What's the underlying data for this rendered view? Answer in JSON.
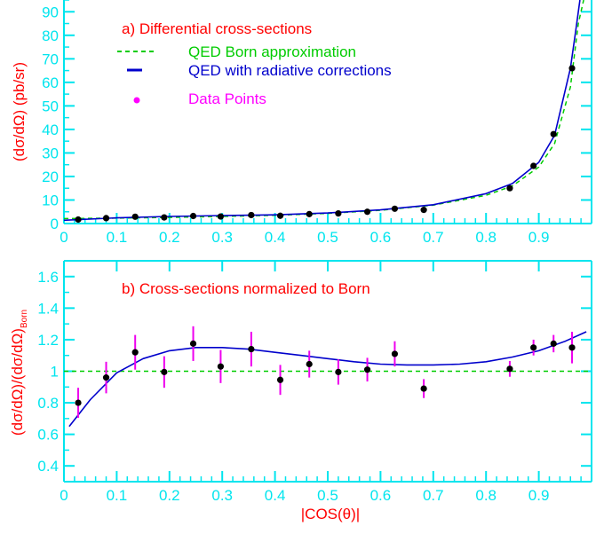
{
  "colors": {
    "axis": "#00e5ee",
    "title": "#ff0000",
    "born": "#00cc00",
    "radiative": "#0000cc",
    "data_point": "#000000",
    "error_bar": "#ee00ee",
    "data_legend": "#ff00ff"
  },
  "chart_data": [
    {
      "type": "scatter",
      "title": "a) Differential cross-sections",
      "xlabel": "",
      "ylabel": "(dσ/dΩ) (pb/sr)",
      "xlim": [
        0,
        1
      ],
      "ylim": [
        0,
        95
      ],
      "x_ticks": [
        "0",
        "0.1",
        "0.2",
        "0.3",
        "0.4",
        "0.5",
        "0.6",
        "0.7",
        "0.8",
        "0.9"
      ],
      "y_ticks": [
        "0",
        "10",
        "20",
        "30",
        "40",
        "50",
        "60",
        "70",
        "80",
        "90"
      ],
      "legend": [
        "QED Born approximation",
        "QED with radiative corrections",
        "Data Points"
      ],
      "series": [
        {
          "name": "QED Born approximation",
          "style": "dashed-line",
          "x": [
            0,
            0.1,
            0.2,
            0.3,
            0.4,
            0.5,
            0.6,
            0.7,
            0.8,
            0.85,
            0.9,
            0.93,
            0.96,
            0.975,
            0.985
          ],
          "y": [
            2.1,
            2.3,
            2.6,
            3.0,
            3.5,
            4.3,
            5.6,
            7.8,
            12.0,
            16.0,
            24.0,
            34.0,
            58.0,
            85.0,
            95.0
          ]
        },
        {
          "name": "QED with radiative corrections",
          "style": "solid-line",
          "x": [
            0,
            0.1,
            0.2,
            0.3,
            0.4,
            0.5,
            0.6,
            0.7,
            0.8,
            0.85,
            0.9,
            0.93,
            0.96,
            0.97,
            0.978
          ],
          "y": [
            1.4,
            2.4,
            3.0,
            3.4,
            3.7,
            4.5,
            5.8,
            8.0,
            12.7,
            17.0,
            26.0,
            37.5,
            66.0,
            82.0,
            95.0
          ]
        },
        {
          "name": "Data Points",
          "style": "markers",
          "x": [
            0.027,
            0.08,
            0.135,
            0.19,
            0.245,
            0.297,
            0.355,
            0.41,
            0.465,
            0.52,
            0.575,
            0.627,
            0.682,
            0.845,
            0.89,
            0.928,
            0.963
          ],
          "y": [
            1.7,
            2.3,
            2.9,
            2.6,
            3.2,
            3.0,
            3.6,
            3.3,
            4.0,
            4.3,
            5.0,
            6.3,
            5.8,
            15.0,
            24.5,
            38.0,
            66.0
          ]
        }
      ]
    },
    {
      "type": "scatter",
      "title": "b) Cross-sections normalized to Born",
      "xlabel": "|COS(θ)|",
      "ylabel": "(dσ/dΩ)/(dσ/dΩ)",
      "ylabel_subscript": "Born",
      "xlim": [
        0,
        1
      ],
      "ylim": [
        0.3,
        1.7
      ],
      "x_ticks": [
        "0",
        "0.1",
        "0.2",
        "0.3",
        "0.4",
        "0.5",
        "0.6",
        "0.7",
        "0.8",
        "0.9"
      ],
      "y_ticks": [
        "0.4",
        "0.6",
        "0.8",
        "1",
        "1.2",
        "1.4",
        "1.6"
      ],
      "reference_line": 1.0,
      "series": [
        {
          "style": "solid-line",
          "x": [
            0.01,
            0.05,
            0.1,
            0.15,
            0.2,
            0.25,
            0.3,
            0.35,
            0.4,
            0.45,
            0.5,
            0.55,
            0.6,
            0.65,
            0.7,
            0.75,
            0.8,
            0.85,
            0.9,
            0.95,
            0.99
          ],
          "y": [
            0.65,
            0.82,
            0.99,
            1.08,
            1.13,
            1.15,
            1.15,
            1.14,
            1.12,
            1.1,
            1.08,
            1.06,
            1.045,
            1.04,
            1.04,
            1.045,
            1.06,
            1.09,
            1.13,
            1.19,
            1.25
          ]
        },
        {
          "style": "markers-with-error-bars",
          "x": [
            0.027,
            0.08,
            0.135,
            0.19,
            0.245,
            0.297,
            0.355,
            0.41,
            0.465,
            0.52,
            0.575,
            0.627,
            0.682,
            0.845,
            0.89,
            0.928,
            0.963
          ],
          "y": [
            0.8,
            0.96,
            1.12,
            0.995,
            1.175,
            1.03,
            1.14,
            0.945,
            1.045,
            0.995,
            1.01,
            1.11,
            0.89,
            1.015,
            1.15,
            1.175,
            1.15
          ],
          "err": [
            0.095,
            0.1,
            0.11,
            0.1,
            0.11,
            0.105,
            0.11,
            0.095,
            0.085,
            0.08,
            0.075,
            0.08,
            0.06,
            0.05,
            0.05,
            0.055,
            0.1
          ]
        }
      ]
    }
  ]
}
